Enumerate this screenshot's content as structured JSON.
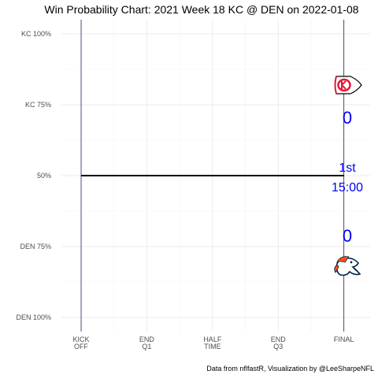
{
  "chart_data": {
    "type": "line",
    "title": "Win Probability Chart: 2021 Week 18 KC @ DEN on 2022-01-08",
    "caption": "Data from nflfastR, Visualization by @LeeSharpeNFL",
    "xlabel": "",
    "ylabel": "",
    "x_ticks": [
      {
        "value": 0,
        "lines": [
          "KICK",
          "OFF"
        ]
      },
      {
        "value": 900,
        "lines": [
          "END",
          "Q1"
        ]
      },
      {
        "value": 1800,
        "lines": [
          "HALF",
          "TIME"
        ]
      },
      {
        "value": 2700,
        "lines": [
          "END",
          "Q3"
        ]
      },
      {
        "value": 3600,
        "lines": [
          "FINAL"
        ]
      }
    ],
    "y_ticks": [
      {
        "value": 1.0,
        "label": "KC 100%"
      },
      {
        "value": 0.75,
        "label": "KC 75%"
      },
      {
        "value": 0.5,
        "label": "50%"
      },
      {
        "value": 0.25,
        "label": "DEN 75%"
      },
      {
        "value": 0.0,
        "label": "DEN 100%"
      }
    ],
    "xlim": [
      -270,
      3960
    ],
    "ylim": [
      -0.05,
      1.05
    ],
    "grid": true,
    "series": [
      {
        "x": [
          0,
          3600
        ],
        "y": [
          0.5,
          0.5
        ],
        "color": "#000000"
      }
    ],
    "annotations": {
      "away_score": "0",
      "home_score": "0",
      "quarter": "1st",
      "clock": "15:00",
      "text_color": "#0000ff"
    },
    "colors": {
      "kc_red": "#e31837",
      "den_orange": "#fb4f14",
      "den_navy": "#002244"
    }
  }
}
